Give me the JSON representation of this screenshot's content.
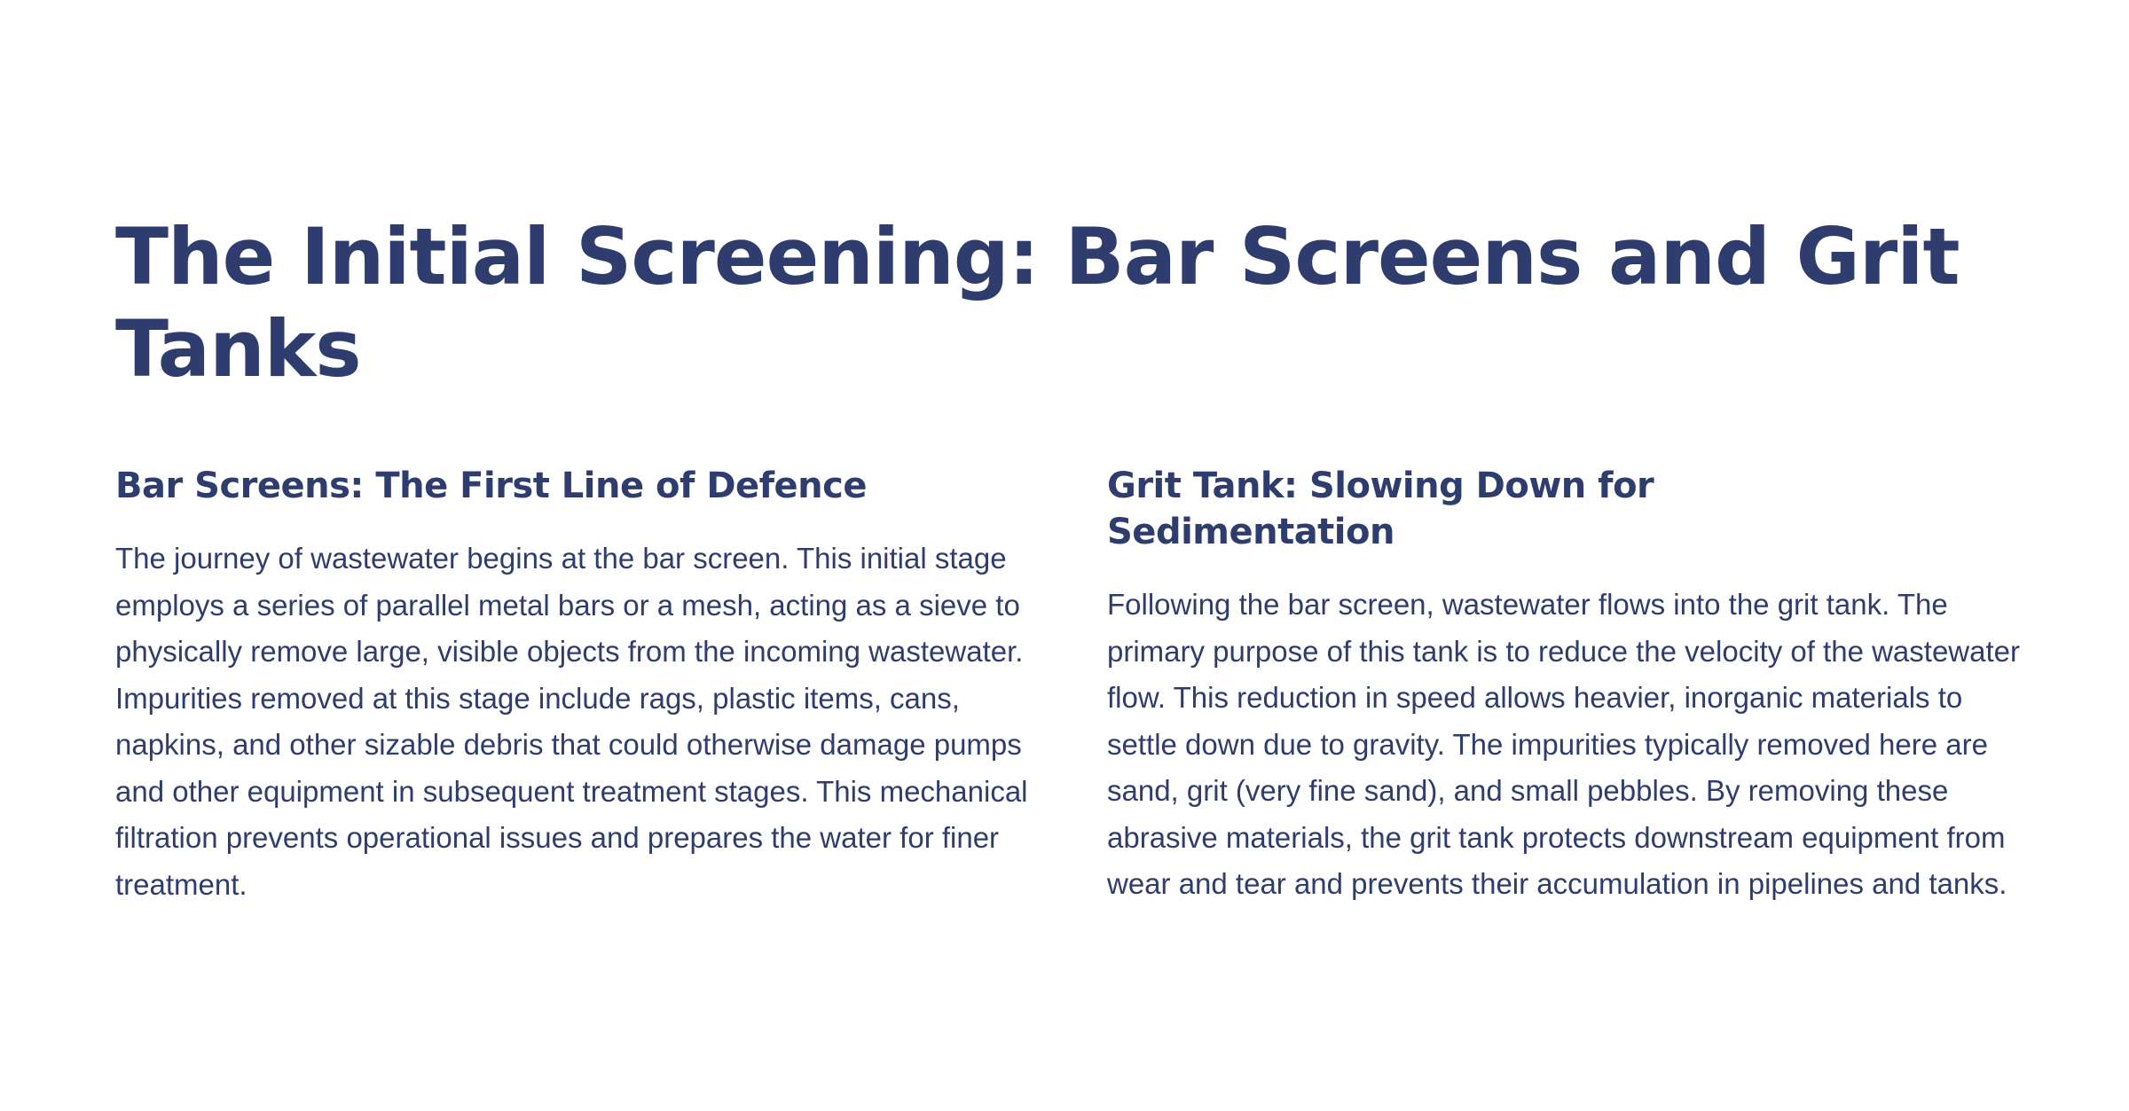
{
  "page": {
    "title": "The Initial Screening: Bar Screens and Grit Tanks"
  },
  "sections": [
    {
      "heading": "Bar Screens: The First Line of Defence",
      "body": "The journey of wastewater begins at the bar screen. This initial stage employs a series of parallel metal bars or a mesh, acting as a sieve to physically remove large, visible objects from the incoming wastewater. Impurities removed at this stage include rags, plastic items, cans, napkins, and other sizable debris that could otherwise damage pumps and other equipment in subsequent treatment stages. This mechanical filtration prevents operational issues and prepares the water for finer treatment."
    },
    {
      "heading": "Grit Tank: Slowing Down for Sedimentation",
      "body": "Following the bar screen, wastewater flows into the grit tank. The primary purpose of this tank is to reduce the velocity of the wastewater flow. This reduction in speed allows heavier, inorganic materials to settle down due to gravity. The impurities typically removed here are sand, grit (very fine sand), and small pebbles. By removing these abrasive materials, the grit tank protects downstream equipment from wear and tear and prevents their accumulation in pipelines and tanks."
    }
  ],
  "colors": {
    "text": "#2f3d6e",
    "background": "#ffffff"
  }
}
